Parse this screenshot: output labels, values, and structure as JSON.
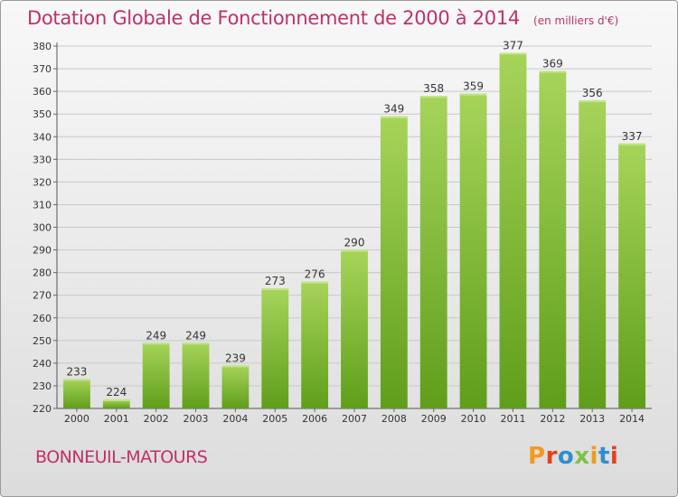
{
  "header": {
    "title": "Dotation Globale de Fonctionnement de 2000 à 2014",
    "unit": "(en milliers d'€)"
  },
  "footer": {
    "commune": "BONNEUIL-MATOURS",
    "logo_text": "Proxiti",
    "logo_colors": [
      "#f29a1e",
      "#e8401c",
      "#2e8fd0",
      "#7dc242",
      "#f29a1e",
      "#2e8fd0",
      "#e8401c"
    ]
  },
  "colors": {
    "bar_top": "#a6d45a",
    "bar_bottom": "#5f9e1a",
    "title": "#c0306a",
    "grid": "#c8c8c8"
  },
  "chart_data": {
    "type": "bar",
    "categories": [
      "2000",
      "2001",
      "2002",
      "2003",
      "2004",
      "2005",
      "2006",
      "2007",
      "2008",
      "2009",
      "2010",
      "2011",
      "2012",
      "2013",
      "2014"
    ],
    "values": [
      233,
      224,
      249,
      249,
      239,
      273,
      276,
      290,
      349,
      358,
      359,
      377,
      369,
      356,
      337
    ],
    "ylim": [
      220,
      380
    ],
    "yticks": [
      220,
      230,
      240,
      250,
      260,
      270,
      280,
      290,
      300,
      310,
      320,
      330,
      340,
      350,
      360,
      370,
      380
    ],
    "grid": true
  }
}
